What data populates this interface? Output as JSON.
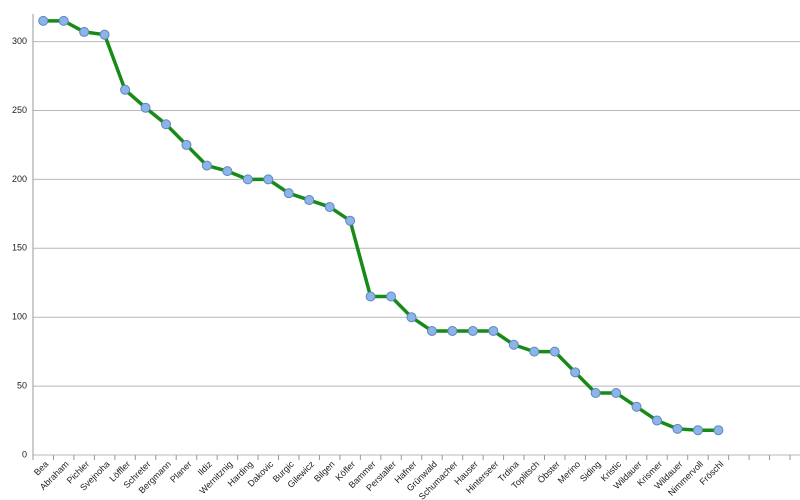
{
  "chart_data": {
    "type": "line",
    "categories": [
      "Bea",
      "Abraham",
      "Pichler",
      "Svejnoha",
      "Löffler",
      "Schreter",
      "Bergmann",
      "Planer",
      "Ildiz",
      "Wernitznig",
      "Harding",
      "Dakovic",
      "Burgic",
      "Gilewicz",
      "Bilgen",
      "Köfler",
      "Bammer",
      "Perstaller",
      "Hafner",
      "Grünwald",
      "Schumacher",
      "Hauser",
      "Hinterseer",
      "Trdina",
      "Toplitsch",
      "Öbster",
      "Merino",
      "Siding",
      "Kristic",
      "Wildauer",
      "Krismer",
      "Wildauer",
      "Nimmervoll",
      "Fröschl",
      null,
      null,
      null
    ],
    "series": [
      {
        "color": "#178a17",
        "marker_color": "#8db4e8",
        "values": [
          315,
          315,
          307,
          305,
          265,
          252,
          240,
          225,
          210,
          206,
          200,
          200,
          190,
          185,
          180,
          170,
          115,
          115,
          100,
          90,
          90,
          90,
          90,
          80,
          75,
          75,
          60,
          45,
          45,
          35,
          25,
          19,
          18,
          18,
          null,
          null,
          null
        ]
      }
    ],
    "ylim": [
      0,
      320
    ],
    "yticks": [
      0,
      50,
      100,
      150,
      200,
      250,
      300
    ],
    "grid": true
  }
}
